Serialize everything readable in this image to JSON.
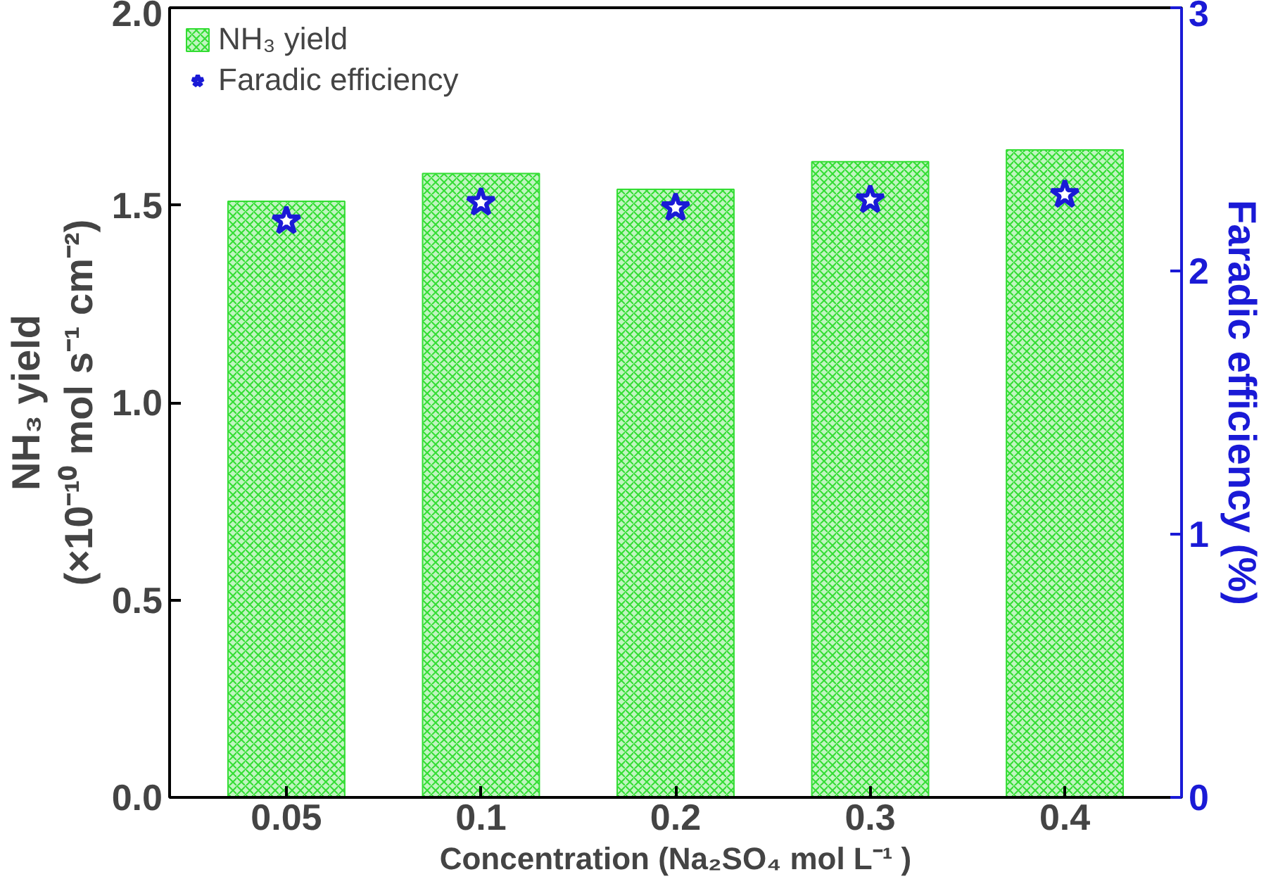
{
  "chart_data": {
    "type": "bar",
    "xlabel": "Concentration (Na₂SO₄ mol L⁻¹ )",
    "ylabel": "NH₃ yield\n(×10⁻¹⁰ mol s⁻¹ cm⁻²)",
    "y2label": "Faradic efficiency (%)",
    "categories": [
      "0.05",
      "0.1",
      "0.2",
      "0.3",
      "0.4"
    ],
    "series": [
      {
        "name": "NH₃ yield",
        "color": "#33dd33",
        "values": [
          1.51,
          1.58,
          1.54,
          1.61,
          1.64
        ]
      },
      {
        "name": "Faradic efficiency",
        "type": "scatter",
        "axis": "y2",
        "marker": "star",
        "color": "#1a1ad6",
        "values": [
          2.19,
          2.26,
          2.24,
          2.27,
          2.29
        ]
      }
    ],
    "ylim": [
      0,
      2.0
    ],
    "yticks": [
      {
        "value": 0,
        "label": "0.0"
      },
      0.5,
      {
        "value": 1,
        "label": "1.0"
      },
      1.5,
      {
        "value": 2,
        "label": "2.0"
      }
    ],
    "y2lim": [
      0,
      3
    ],
    "y2ticks": [
      0,
      1,
      2,
      3
    ],
    "legend": "top left",
    "grid": false
  }
}
